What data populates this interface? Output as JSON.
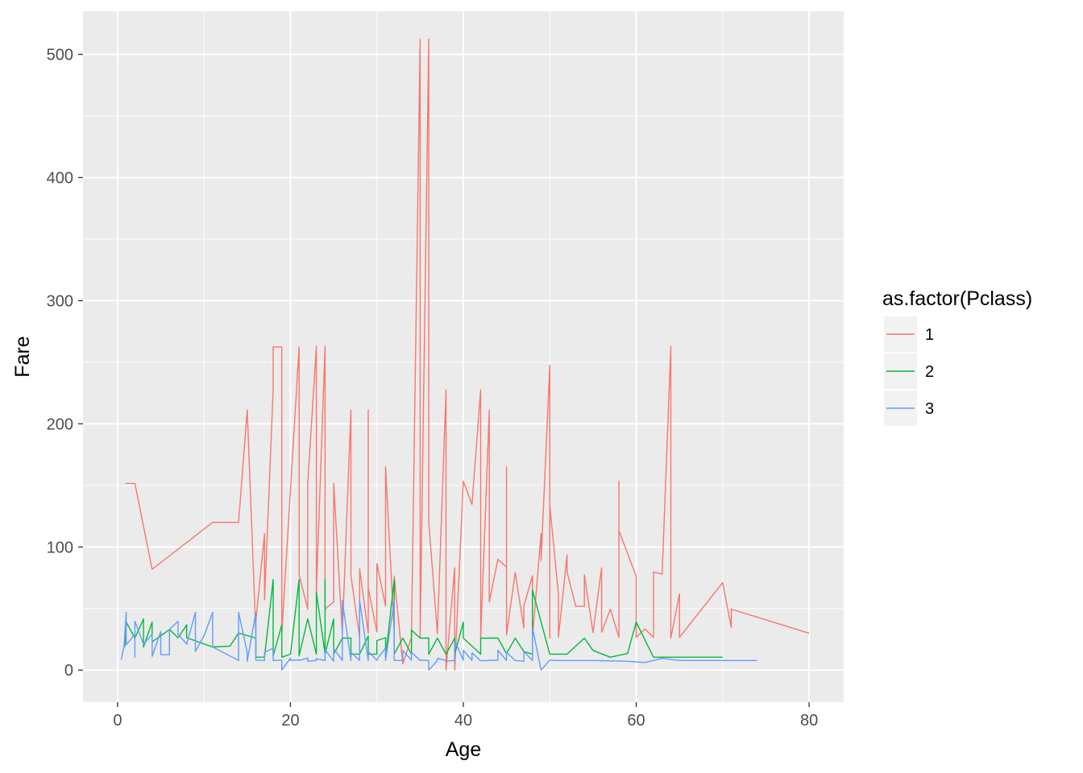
{
  "chart_data": {
    "type": "line",
    "xlabel": "Age",
    "ylabel": "Fare",
    "xlim": [
      -4,
      84
    ],
    "ylim": [
      -26,
      535
    ],
    "x_ticks": [
      0,
      20,
      40,
      60,
      80
    ],
    "y_ticks": [
      0,
      100,
      200,
      300,
      400,
      500
    ],
    "x_tick_labels": [
      "0",
      "20",
      "40",
      "60",
      "80"
    ],
    "y_tick_labels": [
      "0",
      "100",
      "200",
      "300",
      "400",
      "500"
    ],
    "grid": true,
    "background": "#ebebeb",
    "legend": {
      "title": "as.factor(Pclass)",
      "position": "right"
    },
    "series": [
      {
        "name": "1",
        "color": "#f8766d",
        "points": [
          [
            0.92,
            151.6
          ],
          [
            2,
            151.6
          ],
          [
            4,
            81.9
          ],
          [
            11,
            120
          ],
          [
            14,
            120
          ],
          [
            15,
            211.3
          ],
          [
            16,
            30
          ],
          [
            16,
            39.4
          ],
          [
            17,
            110.9
          ],
          [
            17,
            57
          ],
          [
            18,
            227.5
          ],
          [
            18,
            262.4
          ],
          [
            19,
            262.4
          ],
          [
            19,
            30
          ],
          [
            21,
            262.4
          ],
          [
            21,
            77.3
          ],
          [
            22,
            49.5
          ],
          [
            22,
            151.6
          ],
          [
            23,
            263
          ],
          [
            23,
            63.4
          ],
          [
            24,
            263
          ],
          [
            24,
            69.3
          ],
          [
            24,
            247.5
          ],
          [
            24,
            49.5
          ],
          [
            25,
            55.4
          ],
          [
            25,
            151.6
          ],
          [
            26,
            30
          ],
          [
            27,
            211.3
          ],
          [
            27,
            76.7
          ],
          [
            28,
            26.5
          ],
          [
            28,
            82.2
          ],
          [
            29,
            30
          ],
          [
            29,
            211.3
          ],
          [
            29,
            66.6
          ],
          [
            30,
            31
          ],
          [
            30,
            86.5
          ],
          [
            31,
            52
          ],
          [
            31,
            164.9
          ],
          [
            32,
            30.5
          ],
          [
            32,
            76.3
          ],
          [
            33,
            5
          ],
          [
            34,
            26.6
          ],
          [
            35,
            512.3
          ],
          [
            35,
            26.3
          ],
          [
            36,
            512.3
          ],
          [
            36,
            120
          ],
          [
            37,
            29.7
          ],
          [
            38,
            227.5
          ],
          [
            38,
            0
          ],
          [
            39,
            83.2
          ],
          [
            39,
            0
          ],
          [
            40,
            153.5
          ],
          [
            41,
            134.5
          ],
          [
            42,
            227.5
          ],
          [
            42,
            26.6
          ],
          [
            43,
            211.3
          ],
          [
            43,
            55.4
          ],
          [
            44,
            90
          ],
          [
            45,
            83.5
          ],
          [
            45,
            164.9
          ],
          [
            45,
            28.5
          ],
          [
            46,
            79.2
          ],
          [
            47,
            34
          ],
          [
            47,
            52
          ],
          [
            48,
            76.7
          ],
          [
            48,
            26.6
          ],
          [
            49,
            110.9
          ],
          [
            49,
            89.1
          ],
          [
            50,
            247.5
          ],
          [
            50,
            26
          ],
          [
            50,
            133.7
          ],
          [
            51,
            61.4
          ],
          [
            51,
            26.6
          ],
          [
            52,
            93.5
          ],
          [
            52,
            79.7
          ],
          [
            53,
            51.9
          ],
          [
            54,
            51.9
          ],
          [
            54,
            77.3
          ],
          [
            55,
            30.5
          ],
          [
            56,
            83.2
          ],
          [
            56,
            30.7
          ],
          [
            57,
            49.5
          ],
          [
            58,
            26.6
          ],
          [
            58,
            153.5
          ],
          [
            58,
            113.3
          ],
          [
            60,
            76.3
          ],
          [
            60,
            26.6
          ],
          [
            61,
            33.5
          ],
          [
            62,
            26.6
          ],
          [
            62,
            79.7
          ],
          [
            63,
            77.9
          ],
          [
            64,
            263
          ],
          [
            64,
            26
          ],
          [
            65,
            61.9
          ],
          [
            65,
            26.6
          ],
          [
            70,
            71
          ],
          [
            71,
            34.7
          ],
          [
            71,
            49.5
          ],
          [
            80,
            30
          ]
        ]
      },
      {
        "name": "2",
        "color": "#00ba38",
        "points": [
          [
            0.83,
            18.8
          ],
          [
            1,
            39
          ],
          [
            2,
            26
          ],
          [
            3,
            41.6
          ],
          [
            3,
            18.8
          ],
          [
            4,
            39
          ],
          [
            4,
            23
          ],
          [
            5,
            27.8
          ],
          [
            6,
            33
          ],
          [
            7,
            26.3
          ],
          [
            8,
            36.8
          ],
          [
            8,
            26.3
          ],
          [
            11,
            18.8
          ],
          [
            13,
            19.5
          ],
          [
            14,
            30.1
          ],
          [
            16,
            26
          ],
          [
            16,
            10.5
          ],
          [
            17,
            10.5
          ],
          [
            18,
            73.5
          ],
          [
            18,
            11.5
          ],
          [
            19,
            36.8
          ],
          [
            19,
            10.5
          ],
          [
            20,
            13
          ],
          [
            21,
            73.5
          ],
          [
            21,
            11.5
          ],
          [
            22,
            41.6
          ],
          [
            23,
            13
          ],
          [
            23,
            63.4
          ],
          [
            24,
            13
          ],
          [
            24,
            73.5
          ],
          [
            24,
            13
          ],
          [
            25,
            41.6
          ],
          [
            25,
            13
          ],
          [
            26,
            26
          ],
          [
            27,
            26
          ],
          [
            27,
            13
          ],
          [
            28,
            13
          ],
          [
            29,
            27.7
          ],
          [
            29,
            13
          ],
          [
            30,
            13
          ],
          [
            30,
            24
          ],
          [
            31,
            26.3
          ],
          [
            31,
            10.5
          ],
          [
            32,
            73.5
          ],
          [
            32,
            13
          ],
          [
            33,
            26
          ],
          [
            34,
            13
          ],
          [
            34,
            32.5
          ],
          [
            35,
            26
          ],
          [
            36,
            26
          ],
          [
            36,
            13
          ],
          [
            37,
            26
          ],
          [
            38,
            13
          ],
          [
            39,
            26
          ],
          [
            39,
            13
          ],
          [
            40,
            39
          ],
          [
            40,
            26
          ],
          [
            42,
            13
          ],
          [
            42,
            26
          ],
          [
            44,
            26
          ],
          [
            45,
            13.5
          ],
          [
            46,
            26
          ],
          [
            47,
            15
          ],
          [
            48,
            13
          ],
          [
            48,
            65
          ],
          [
            50,
            13
          ],
          [
            52,
            13
          ],
          [
            54,
            26
          ],
          [
            55,
            16
          ],
          [
            57,
            10.5
          ],
          [
            59,
            13.5
          ],
          [
            60,
            39
          ],
          [
            62,
            10.5
          ],
          [
            70,
            10.5
          ]
        ]
      },
      {
        "name": "3",
        "color": "#619cff",
        "points": [
          [
            0.42,
            8.5
          ],
          [
            0.75,
            19.3
          ],
          [
            1,
            46.9
          ],
          [
            1,
            20.6
          ],
          [
            2,
            29.1
          ],
          [
            2,
            10.5
          ],
          [
            2,
            39.7
          ],
          [
            3,
            21.1
          ],
          [
            4,
            29.1
          ],
          [
            4,
            16.7
          ],
          [
            4,
            11.1
          ],
          [
            5,
            31.4
          ],
          [
            5,
            12.5
          ],
          [
            6,
            12.5
          ],
          [
            6,
            33
          ],
          [
            7,
            39.7
          ],
          [
            7,
            29.1
          ],
          [
            8,
            21.1
          ],
          [
            9,
            46.9
          ],
          [
            9,
            15.2
          ],
          [
            10,
            27.9
          ],
          [
            11,
            46.9
          ],
          [
            11,
            18.8
          ],
          [
            14,
            7.9
          ],
          [
            14,
            46.9
          ],
          [
            15,
            14.5
          ],
          [
            15,
            7.2
          ],
          [
            16,
            46.9
          ],
          [
            16,
            8.1
          ],
          [
            17,
            7.9
          ],
          [
            17,
            14.5
          ],
          [
            18,
            17.8
          ],
          [
            18,
            7.8
          ],
          [
            19,
            8.1
          ],
          [
            19,
            0
          ],
          [
            20,
            9.8
          ],
          [
            20,
            7.9
          ],
          [
            21,
            8.4
          ],
          [
            21,
            7.8
          ],
          [
            22,
            9.8
          ],
          [
            22,
            7.2
          ],
          [
            23,
            7.9
          ],
          [
            23,
            9.2
          ],
          [
            24,
            7.9
          ],
          [
            24,
            16.7
          ],
          [
            25,
            7.2
          ],
          [
            25,
            17.8
          ],
          [
            26,
            7.9
          ],
          [
            26,
            56.5
          ],
          [
            27,
            7.9
          ],
          [
            27,
            14.5
          ],
          [
            28,
            7.9
          ],
          [
            28,
            56.5
          ],
          [
            29,
            7.9
          ],
          [
            29,
            15.2
          ],
          [
            30,
            7.9
          ],
          [
            30,
            8.7
          ],
          [
            31,
            18
          ],
          [
            31,
            7.9
          ],
          [
            32,
            56.5
          ],
          [
            32,
            7.9
          ],
          [
            33,
            7.9
          ],
          [
            33,
            15.9
          ],
          [
            34,
            8.1
          ],
          [
            34,
            14.4
          ],
          [
            35,
            7.9
          ],
          [
            35,
            8.1
          ],
          [
            36,
            7.9
          ],
          [
            36,
            0
          ],
          [
            37,
            7.9
          ],
          [
            37,
            9.6
          ],
          [
            38,
            7.9
          ],
          [
            38,
            7.2
          ],
          [
            39,
            7.9
          ],
          [
            39,
            24.2
          ],
          [
            40,
            7.9
          ],
          [
            40,
            16.1
          ],
          [
            41,
            7.9
          ],
          [
            41,
            14.1
          ],
          [
            42,
            7.6
          ],
          [
            43,
            7.8
          ],
          [
            43,
            8.1
          ],
          [
            44,
            7.9
          ],
          [
            44,
            16.1
          ],
          [
            45,
            7.8
          ],
          [
            45,
            14.5
          ],
          [
            46,
            7.8
          ],
          [
            47,
            7.2
          ],
          [
            47,
            15
          ],
          [
            48,
            7.9
          ],
          [
            48,
            34.4
          ],
          [
            49,
            0
          ],
          [
            50,
            8.1
          ],
          [
            51,
            7.8
          ],
          [
            55,
            7.8
          ],
          [
            59,
            7.2
          ],
          [
            61,
            6.2
          ],
          [
            63,
            9.6
          ],
          [
            65,
            7.8
          ],
          [
            70,
            7.8
          ],
          [
            74,
            7.8
          ]
        ]
      }
    ]
  }
}
